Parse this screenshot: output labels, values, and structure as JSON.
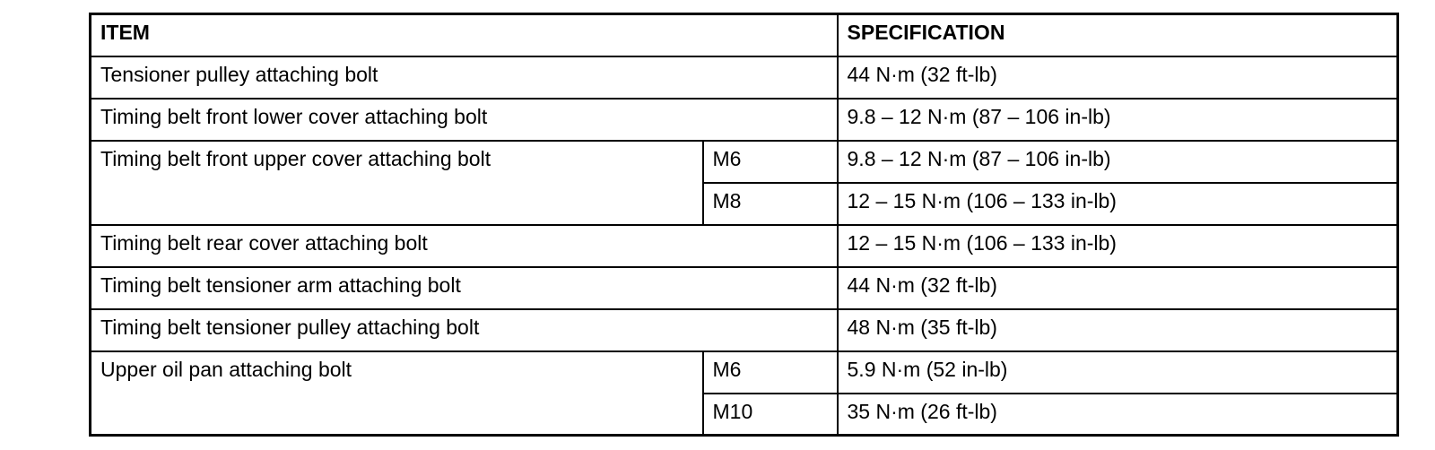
{
  "page": {
    "background_color": "#ffffff",
    "text_color": "#000000",
    "border_color": "#000000"
  },
  "table": {
    "header": {
      "item": "ITEM",
      "specification": "SPECIFICATION"
    },
    "rows": [
      {
        "item": "Tensioner pulley attaching bolt",
        "specification": "44 N·m (32 ft-lb)"
      },
      {
        "item": "Timing belt front lower cover attaching bolt",
        "specification": "9.8 – 12 N·m (87 – 106 in-lb)"
      },
      {
        "item": "Timing belt front upper cover attaching bolt",
        "sizes": [
          {
            "size": "M6",
            "specification": "9.8 – 12 N·m (87 – 106 in-lb)"
          },
          {
            "size": "M8",
            "specification": "12 – 15 N·m (106 – 133 in-lb)"
          }
        ]
      },
      {
        "item": "Timing belt rear cover attaching bolt",
        "specification": "12 – 15 N·m (106 – 133 in-lb)"
      },
      {
        "item": "Timing belt tensioner arm attaching bolt",
        "specification": "44 N·m (32 ft-lb)"
      },
      {
        "item": "Timing belt tensioner pulley attaching bolt",
        "specification": "48 N·m (35 ft-lb)"
      },
      {
        "item": "Upper oil pan attaching bolt",
        "sizes": [
          {
            "size": "M6",
            "specification": "5.9 N·m (52 in-lb)"
          },
          {
            "size": "M10",
            "specification": "35 N·m (26 ft-lb)"
          }
        ]
      }
    ]
  }
}
